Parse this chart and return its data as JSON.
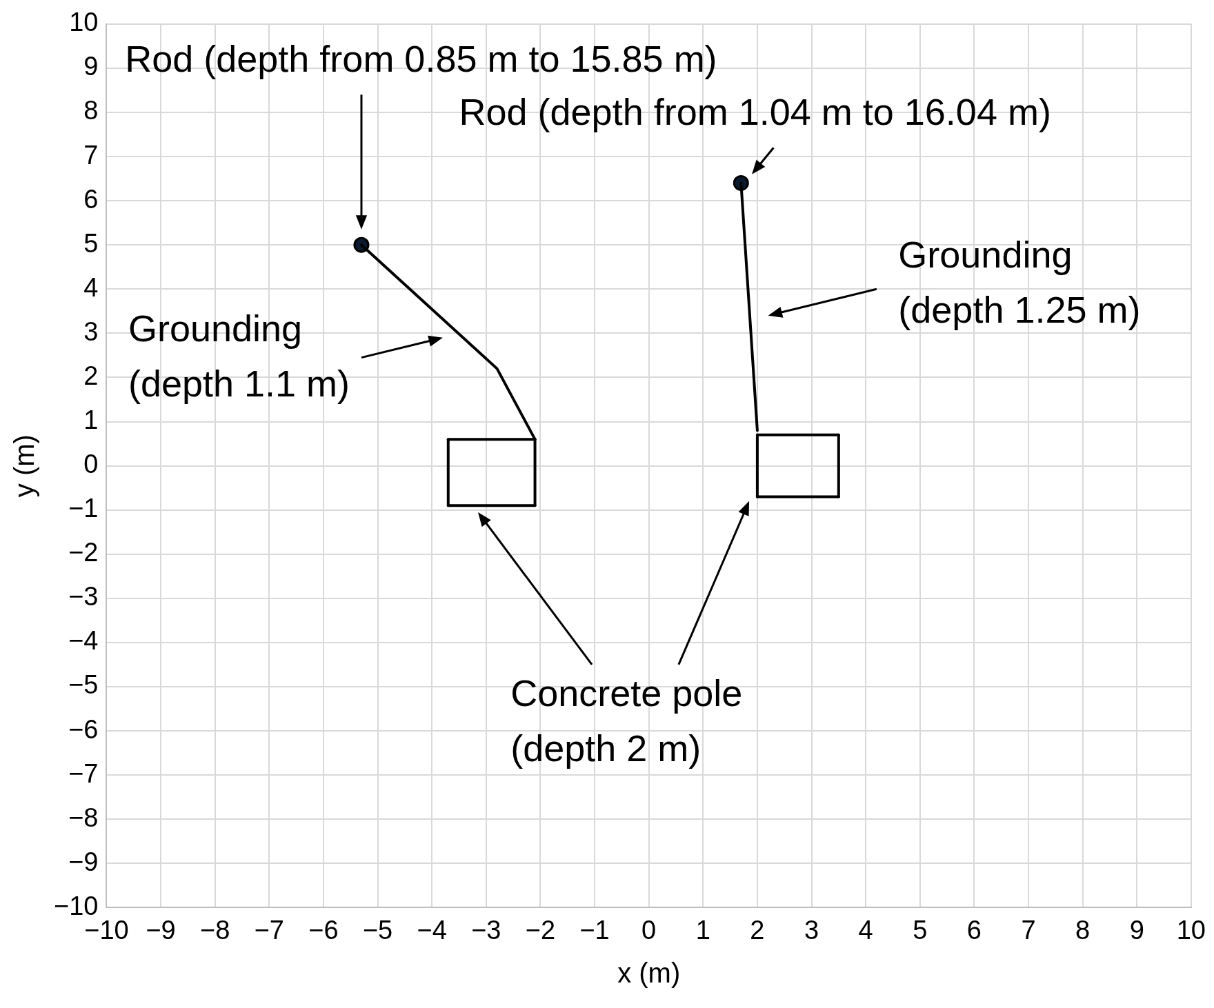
{
  "chart_data": {
    "type": "line",
    "xlabel": "x (m)",
    "ylabel": "y (m)",
    "xlim": [
      -10,
      10
    ],
    "xticks": [
      -10,
      -9,
      -8,
      -7,
      -6,
      -5,
      -4,
      -3,
      -2,
      -1,
      0,
      1,
      2,
      3,
      4,
      5,
      6,
      7,
      8,
      9,
      10
    ],
    "ylim": [
      -10,
      10
    ],
    "yticks": [
      -10,
      -9,
      -8,
      -7,
      -6,
      -5,
      -4,
      -3,
      -2,
      -1,
      0,
      1,
      2,
      3,
      4,
      5,
      6,
      7,
      8,
      9,
      10
    ],
    "grid": true,
    "legend": false,
    "line_style": "solid",
    "series": [
      {
        "type": "line",
        "color": "#000000",
        "marker": "none",
        "x": [
          -5.3,
          -2.8,
          -2.1
        ],
        "values": [
          5.0,
          2.2,
          0.6
        ]
      },
      {
        "type": "line",
        "color": "#000000",
        "marker": "none",
        "x": [
          -3.7,
          -2.1
        ],
        "values": [
          0.6,
          0.6
        ]
      },
      {
        "type": "line",
        "color": "#000000",
        "marker": "none",
        "x": [
          -3.7,
          -2.1
        ],
        "values": [
          -0.9,
          -0.9
        ]
      },
      {
        "type": "line",
        "color": "#000000",
        "marker": "none",
        "x": [
          -3.7,
          -3.7
        ],
        "values": [
          0.6,
          -0.9
        ]
      },
      {
        "type": "line",
        "color": "#000000",
        "marker": "none",
        "x": [
          -2.1,
          -2.1
        ],
        "values": [
          0.6,
          -0.9
        ]
      },
      {
        "type": "line",
        "color": "#000000",
        "marker": "none",
        "x": [
          1.7,
          2.0
        ],
        "values": [
          6.4,
          0.8
        ]
      },
      {
        "type": "line",
        "color": "#000000",
        "marker": "none",
        "x": [
          2.0,
          3.5
        ],
        "values": [
          0.7,
          0.7
        ]
      },
      {
        "type": "line",
        "color": "#000000",
        "marker": "none",
        "x": [
          2.0,
          3.5
        ],
        "values": [
          -0.7,
          -0.7
        ]
      },
      {
        "type": "line",
        "color": "#000000",
        "marker": "none",
        "x": [
          2.0,
          2.0
        ],
        "values": [
          0.7,
          -0.7
        ]
      },
      {
        "type": "line",
        "color": "#000000",
        "marker": "none",
        "x": [
          3.5,
          3.5
        ],
        "values": [
          0.7,
          -0.7
        ]
      },
      {
        "type": "scatter",
        "color": "#0b1a2e",
        "marker": "circle",
        "x": [
          -5.3,
          1.7
        ],
        "values": [
          5.0,
          6.4
        ]
      }
    ],
    "annotations": [
      "Rod (depth from 0.85 m to 15.85 m)",
      "Rod (depth from 1.04 m to 16.04 m)",
      "Grounding\n(depth 1.1 m)",
      "Grounding\n(depth 1.25 m)",
      "Concrete pole\n(depth 2 m)"
    ]
  }
}
